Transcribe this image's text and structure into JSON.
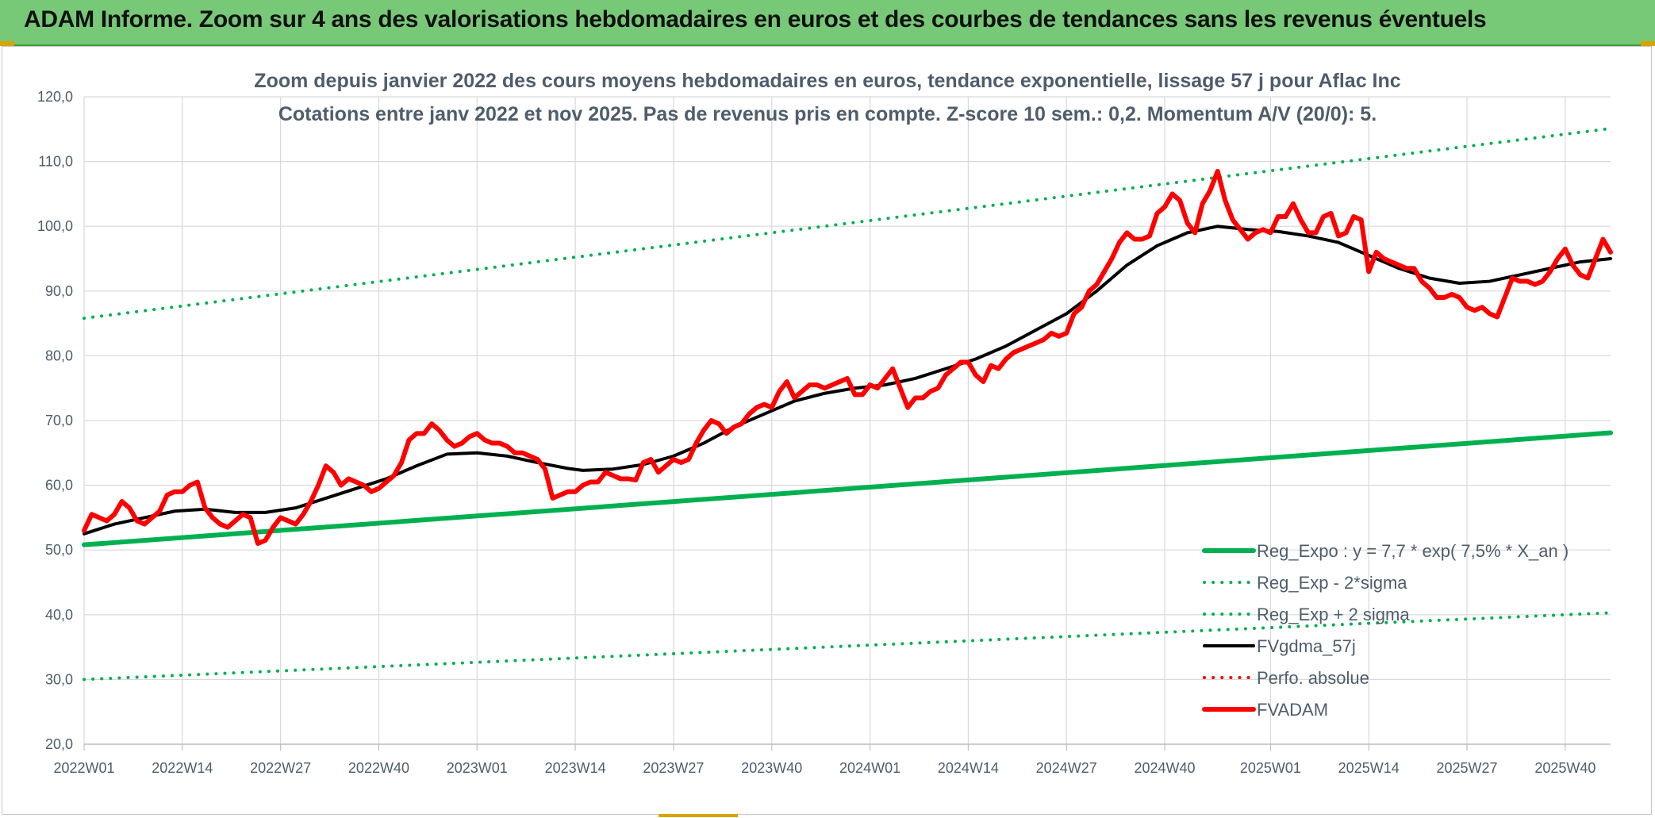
{
  "banner": {
    "title": "ADAM Informe. Zoom sur 4 ans des valorisations hebdomadaires en euros et des courbes de tendances sans les revenus éventuels"
  },
  "colors": {
    "banner": "#77c877",
    "accent_gold": "#d8a400",
    "trend_green": "#00b050",
    "fvadam_red": "#ff0000",
    "fvgdma_black": "#000000",
    "perfo_red": "#ff0000",
    "text_gray": "#4e5d6c",
    "grid": "#d9d9d9"
  },
  "chart_data": {
    "type": "line",
    "title_lines": [
      "Zoom depuis janvier 2022 des cours moyens hebdomadaires en euros, tendance exponentielle, lissage 57 j pour Aflac Inc",
      "Cotations entre janv 2022 et nov 2025. Pas de revenus pris en compte. Z-score 10 sem.: 0,2. Momentum A/V (20/0): 5."
    ],
    "ylim": [
      20,
      120
    ],
    "yticks": [
      "20,0",
      "30,0",
      "40,0",
      "50,0",
      "60,0",
      "70,0",
      "80,0",
      "90,0",
      "100,0",
      "110,0",
      "120,0"
    ],
    "x_categories_count": 203,
    "xticks": [
      {
        "i": 0,
        "label": "2022W01"
      },
      {
        "i": 13,
        "label": "2022W14"
      },
      {
        "i": 26,
        "label": "2022W27"
      },
      {
        "i": 39,
        "label": "2022W40"
      },
      {
        "i": 52,
        "label": "2023W01"
      },
      {
        "i": 65,
        "label": "2023W14"
      },
      {
        "i": 78,
        "label": "2023W27"
      },
      {
        "i": 91,
        "label": "2023W40"
      },
      {
        "i": 104,
        "label": "2024W01"
      },
      {
        "i": 117,
        "label": "2024W14"
      },
      {
        "i": 130,
        "label": "2024W27"
      },
      {
        "i": 143,
        "label": "2024W40"
      },
      {
        "i": 157,
        "label": "2025W01"
      },
      {
        "i": 170,
        "label": "2025W14"
      },
      {
        "i": 183,
        "label": "2025W27"
      },
      {
        "i": 196,
        "label": "2025W40"
      }
    ],
    "grid": true,
    "legend_position": "lower-right",
    "series": [
      {
        "name": "Reg_Expo : y = 7,7 * exp( 7,5% *  X_an )",
        "style": "solid",
        "color": "#00b050",
        "width": 6,
        "points": [
          [
            0,
            50.8
          ],
          [
            202,
            68.1
          ]
        ]
      },
      {
        "name": "Reg_Exp - 2*sigma",
        "style": "dotted",
        "color": "#00b050",
        "width": 4,
        "points": [
          [
            0,
            30.0
          ],
          [
            202,
            40.3
          ]
        ]
      },
      {
        "name": "Reg_Exp + 2 sigma",
        "style": "dotted",
        "color": "#00b050",
        "width": 4,
        "points": [
          [
            0,
            85.8
          ],
          [
            202,
            115.1
          ]
        ]
      },
      {
        "name": "FVgdma_57j",
        "style": "solid",
        "color": "#000000",
        "width": 4,
        "points": [
          [
            0,
            52.5
          ],
          [
            4,
            54.0
          ],
          [
            8,
            55.0
          ],
          [
            12,
            56.0
          ],
          [
            16,
            56.3
          ],
          [
            20,
            55.8
          ],
          [
            24,
            55.8
          ],
          [
            28,
            56.5
          ],
          [
            32,
            58.0
          ],
          [
            36,
            59.5
          ],
          [
            40,
            61.0
          ],
          [
            44,
            63.0
          ],
          [
            48,
            64.8
          ],
          [
            52,
            65.0
          ],
          [
            56,
            64.5
          ],
          [
            60,
            63.5
          ],
          [
            64,
            62.6
          ],
          [
            66,
            62.3
          ],
          [
            70,
            62.5
          ],
          [
            74,
            63.2
          ],
          [
            78,
            64.5
          ],
          [
            82,
            66.5
          ],
          [
            86,
            69.0
          ],
          [
            90,
            71.0
          ],
          [
            94,
            73.0
          ],
          [
            98,
            74.2
          ],
          [
            102,
            75.0
          ],
          [
            106,
            75.5
          ],
          [
            110,
            76.5
          ],
          [
            114,
            78.0
          ],
          [
            118,
            79.5
          ],
          [
            122,
            81.5
          ],
          [
            126,
            84.0
          ],
          [
            130,
            86.5
          ],
          [
            134,
            90.0
          ],
          [
            138,
            94.0
          ],
          [
            142,
            97.0
          ],
          [
            146,
            99.0
          ],
          [
            150,
            100.0
          ],
          [
            154,
            99.5
          ],
          [
            158,
            99.2
          ],
          [
            162,
            98.5
          ],
          [
            166,
            97.5
          ],
          [
            170,
            95.5
          ],
          [
            174,
            93.5
          ],
          [
            178,
            92.0
          ],
          [
            182,
            91.2
          ],
          [
            186,
            91.5
          ],
          [
            190,
            92.5
          ],
          [
            194,
            93.5
          ],
          [
            198,
            94.5
          ],
          [
            202,
            95.0
          ]
        ]
      },
      {
        "name": "Perfo. absolue",
        "style": "dotted",
        "color": "#ff0000",
        "width": 4,
        "points": []
      },
      {
        "name": "FVADAM",
        "style": "solid",
        "color": "#ff0000",
        "width": 6,
        "points": [
          [
            0,
            53.0
          ],
          [
            1,
            55.5
          ],
          [
            2,
            55.0
          ],
          [
            3,
            54.5
          ],
          [
            4,
            55.5
          ],
          [
            5,
            57.5
          ],
          [
            6,
            56.5
          ],
          [
            7,
            54.5
          ],
          [
            8,
            54.0
          ],
          [
            9,
            55.0
          ],
          [
            10,
            56.0
          ],
          [
            11,
            58.5
          ],
          [
            12,
            59.0
          ],
          [
            13,
            59.0
          ],
          [
            14,
            60.0
          ],
          [
            15,
            60.5
          ],
          [
            16,
            56.5
          ],
          [
            17,
            55.0
          ],
          [
            18,
            54.0
          ],
          [
            19,
            53.5
          ],
          [
            20,
            54.5
          ],
          [
            21,
            55.5
          ],
          [
            22,
            55.0
          ],
          [
            23,
            51.0
          ],
          [
            24,
            51.5
          ],
          [
            25,
            53.5
          ],
          [
            26,
            55.0
          ],
          [
            27,
            54.5
          ],
          [
            28,
            54.0
          ],
          [
            29,
            55.5
          ],
          [
            30,
            57.5
          ],
          [
            31,
            60.0
          ],
          [
            32,
            63.0
          ],
          [
            33,
            62.0
          ],
          [
            34,
            60.0
          ],
          [
            35,
            61.0
          ],
          [
            36,
            60.5
          ],
          [
            37,
            60.0
          ],
          [
            38,
            59.0
          ],
          [
            39,
            59.5
          ],
          [
            40,
            60.5
          ],
          [
            41,
            61.5
          ],
          [
            42,
            63.5
          ],
          [
            43,
            67.0
          ],
          [
            44,
            68.0
          ],
          [
            45,
            68.0
          ],
          [
            46,
            69.5
          ],
          [
            47,
            68.5
          ],
          [
            48,
            67.0
          ],
          [
            49,
            66.0
          ],
          [
            50,
            66.5
          ],
          [
            51,
            67.5
          ],
          [
            52,
            68.0
          ],
          [
            53,
            67.0
          ],
          [
            54,
            66.5
          ],
          [
            55,
            66.5
          ],
          [
            56,
            66.0
          ],
          [
            57,
            65.0
          ],
          [
            58,
            65.0
          ],
          [
            59,
            64.5
          ],
          [
            60,
            64.0
          ],
          [
            61,
            62.5
          ],
          [
            62,
            58.0
          ],
          [
            63,
            58.5
          ],
          [
            64,
            59.0
          ],
          [
            65,
            59.0
          ],
          [
            66,
            60.0
          ],
          [
            67,
            60.5
          ],
          [
            68,
            60.5
          ],
          [
            69,
            62.0
          ],
          [
            70,
            61.5
          ],
          [
            71,
            61.0
          ],
          [
            72,
            61.0
          ],
          [
            73,
            60.8
          ],
          [
            74,
            63.5
          ],
          [
            75,
            64.0
          ],
          [
            76,
            62.0
          ],
          [
            77,
            63.0
          ],
          [
            78,
            64.0
          ],
          [
            79,
            63.5
          ],
          [
            80,
            64.0
          ],
          [
            81,
            66.5
          ],
          [
            82,
            68.5
          ],
          [
            83,
            70.0
          ],
          [
            84,
            69.5
          ],
          [
            85,
            68.0
          ],
          [
            86,
            69.0
          ],
          [
            87,
            69.5
          ],
          [
            88,
            71.0
          ],
          [
            89,
            72.0
          ],
          [
            90,
            72.5
          ],
          [
            91,
            72.0
          ],
          [
            92,
            74.5
          ],
          [
            93,
            76.0
          ],
          [
            94,
            73.5
          ],
          [
            95,
            74.5
          ],
          [
            96,
            75.5
          ],
          [
            97,
            75.5
          ],
          [
            98,
            75.0
          ],
          [
            99,
            75.5
          ],
          [
            100,
            76.0
          ],
          [
            101,
            76.5
          ],
          [
            102,
            74.0
          ],
          [
            103,
            74.0
          ],
          [
            104,
            75.5
          ],
          [
            105,
            75.0
          ],
          [
            106,
            76.5
          ],
          [
            107,
            78.0
          ],
          [
            108,
            75.0
          ],
          [
            109,
            72.0
          ],
          [
            110,
            73.5
          ],
          [
            111,
            73.5
          ],
          [
            112,
            74.5
          ],
          [
            113,
            75.0
          ],
          [
            114,
            77.0
          ],
          [
            115,
            78.0
          ],
          [
            116,
            79.0
          ],
          [
            117,
            79.0
          ],
          [
            118,
            77.0
          ],
          [
            119,
            76.0
          ],
          [
            120,
            78.5
          ],
          [
            121,
            78.0
          ],
          [
            122,
            79.5
          ],
          [
            123,
            80.5
          ],
          [
            124,
            81.0
          ],
          [
            125,
            81.5
          ],
          [
            126,
            82.0
          ],
          [
            127,
            82.5
          ],
          [
            128,
            83.5
          ],
          [
            129,
            83.0
          ],
          [
            130,
            83.5
          ],
          [
            131,
            86.5
          ],
          [
            132,
            87.5
          ],
          [
            133,
            90.0
          ],
          [
            134,
            91.0
          ],
          [
            135,
            93.0
          ],
          [
            136,
            95.0
          ],
          [
            137,
            97.5
          ],
          [
            138,
            99.0
          ],
          [
            139,
            98.0
          ],
          [
            140,
            98.0
          ],
          [
            141,
            98.5
          ],
          [
            142,
            102.0
          ],
          [
            143,
            103.0
          ],
          [
            144,
            105.0
          ],
          [
            145,
            104.0
          ],
          [
            146,
            100.5
          ],
          [
            147,
            99.0
          ],
          [
            148,
            103.5
          ],
          [
            149,
            105.5
          ],
          [
            150,
            108.5
          ],
          [
            151,
            104.0
          ],
          [
            152,
            101.0
          ],
          [
            153,
            99.5
          ],
          [
            154,
            98.0
          ],
          [
            155,
            99.0
          ],
          [
            156,
            99.5
          ],
          [
            157,
            99.0
          ],
          [
            158,
            101.5
          ],
          [
            159,
            101.5
          ],
          [
            160,
            103.5
          ],
          [
            161,
            101.0
          ],
          [
            162,
            99.0
          ],
          [
            163,
            99.0
          ],
          [
            164,
            101.5
          ],
          [
            165,
            102.0
          ],
          [
            166,
            98.5
          ],
          [
            167,
            99.0
          ],
          [
            168,
            101.5
          ],
          [
            169,
            101.0
          ],
          [
            170,
            93.0
          ],
          [
            171,
            96.0
          ],
          [
            172,
            95.0
          ],
          [
            173,
            94.5
          ],
          [
            174,
            94.0
          ],
          [
            175,
            93.5
          ],
          [
            176,
            93.5
          ],
          [
            177,
            91.5
          ],
          [
            178,
            90.5
          ],
          [
            179,
            89.0
          ],
          [
            180,
            89.0
          ],
          [
            181,
            89.5
          ],
          [
            182,
            89.0
          ],
          [
            183,
            87.5
          ],
          [
            184,
            87.0
          ],
          [
            185,
            87.5
          ],
          [
            186,
            86.5
          ],
          [
            187,
            86.0
          ],
          [
            188,
            89.0
          ],
          [
            189,
            92.0
          ],
          [
            190,
            91.5
          ],
          [
            191,
            91.5
          ],
          [
            192,
            91.0
          ],
          [
            193,
            91.5
          ],
          [
            194,
            93.0
          ],
          [
            195,
            95.0
          ],
          [
            196,
            96.5
          ],
          [
            197,
            94.0
          ],
          [
            198,
            92.5
          ],
          [
            199,
            92.0
          ],
          [
            200,
            95.0
          ],
          [
            201,
            98.0
          ],
          [
            202,
            96.0
          ]
        ]
      }
    ]
  }
}
